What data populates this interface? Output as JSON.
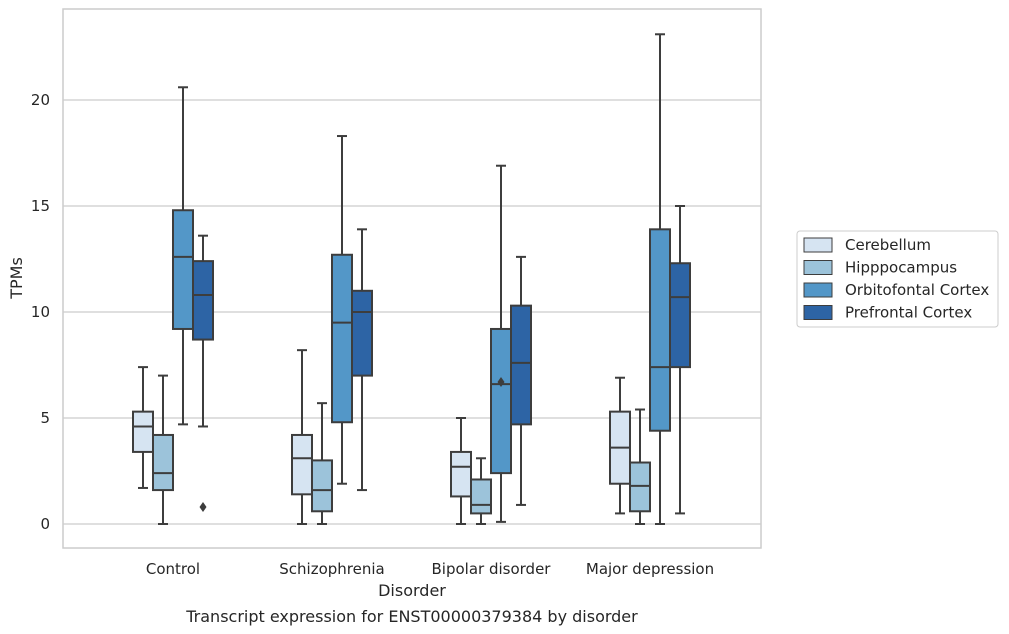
{
  "caption": "Transcript expression for ENST00000379384 by disorder",
  "chart_data": {
    "type": "box",
    "xlabel": "Disorder",
    "ylabel": "TPMs",
    "ylim": [
      -1.1,
      24.3
    ],
    "yticks": [
      0,
      5,
      10,
      15,
      20
    ],
    "grid": "horizontal",
    "legend_position": "right",
    "categories": [
      "Control",
      "Schizophrenia",
      "Bipolar disorder",
      "Major depression"
    ],
    "series": [
      {
        "name": "Cerebellum",
        "color": "#d6e4f2",
        "boxes": [
          {
            "whislo": 1.7,
            "q1": 3.4,
            "med": 4.6,
            "q3": 5.3,
            "whishi": 7.4,
            "fliers": []
          },
          {
            "whislo": 0.0,
            "q1": 1.4,
            "med": 3.1,
            "q3": 4.2,
            "whishi": 8.2,
            "fliers": []
          },
          {
            "whislo": 0.0,
            "q1": 1.3,
            "med": 2.7,
            "q3": 3.4,
            "whishi": 5.0,
            "fliers": []
          },
          {
            "whislo": 0.5,
            "q1": 1.9,
            "med": 3.6,
            "q3": 5.3,
            "whishi": 6.9,
            "fliers": []
          }
        ]
      },
      {
        "name": "Hipppocampus",
        "color": "#9cc3da",
        "boxes": [
          {
            "whislo": 0.0,
            "q1": 1.6,
            "med": 2.4,
            "q3": 4.2,
            "whishi": 7.0,
            "fliers": []
          },
          {
            "whislo": 0.0,
            "q1": 0.6,
            "med": 1.6,
            "q3": 3.0,
            "whishi": 5.7,
            "fliers": []
          },
          {
            "whislo": 0.0,
            "q1": 0.5,
            "med": 0.9,
            "q3": 2.1,
            "whishi": 3.1,
            "fliers": []
          },
          {
            "whislo": 0.0,
            "q1": 0.6,
            "med": 1.8,
            "q3": 2.9,
            "whishi": 5.4,
            "fliers": []
          }
        ]
      },
      {
        "name": "Orbitofontal Cortex",
        "color": "#5397c8",
        "boxes": [
          {
            "whislo": 4.7,
            "q1": 9.2,
            "med": 12.6,
            "q3": 14.8,
            "whishi": 20.6,
            "fliers": []
          },
          {
            "whislo": 1.9,
            "q1": 4.8,
            "med": 9.5,
            "q3": 12.7,
            "whishi": 18.3,
            "fliers": []
          },
          {
            "whislo": 0.1,
            "q1": 2.4,
            "med": 6.6,
            "q3": 9.2,
            "whishi": 16.9,
            "fliers": [
              6.7
            ]
          },
          {
            "whislo": 0.0,
            "q1": 4.4,
            "med": 7.4,
            "q3": 13.9,
            "whishi": 23.1,
            "fliers": []
          }
        ]
      },
      {
        "name": "Prefrontal Cortex",
        "color": "#2d64a5",
        "boxes": [
          {
            "whislo": 4.6,
            "q1": 8.7,
            "med": 10.8,
            "q3": 12.4,
            "whishi": 13.6,
            "fliers": [
              0.8
            ]
          },
          {
            "whislo": 1.6,
            "q1": 7.0,
            "med": 10.0,
            "q3": 11.0,
            "whishi": 13.9,
            "fliers": []
          },
          {
            "whislo": 0.9,
            "q1": 4.7,
            "med": 7.6,
            "q3": 10.3,
            "whishi": 12.6,
            "fliers": []
          },
          {
            "whislo": 0.5,
            "q1": 7.4,
            "med": 10.7,
            "q3": 12.3,
            "whishi": 15.0,
            "fliers": []
          }
        ]
      }
    ]
  }
}
